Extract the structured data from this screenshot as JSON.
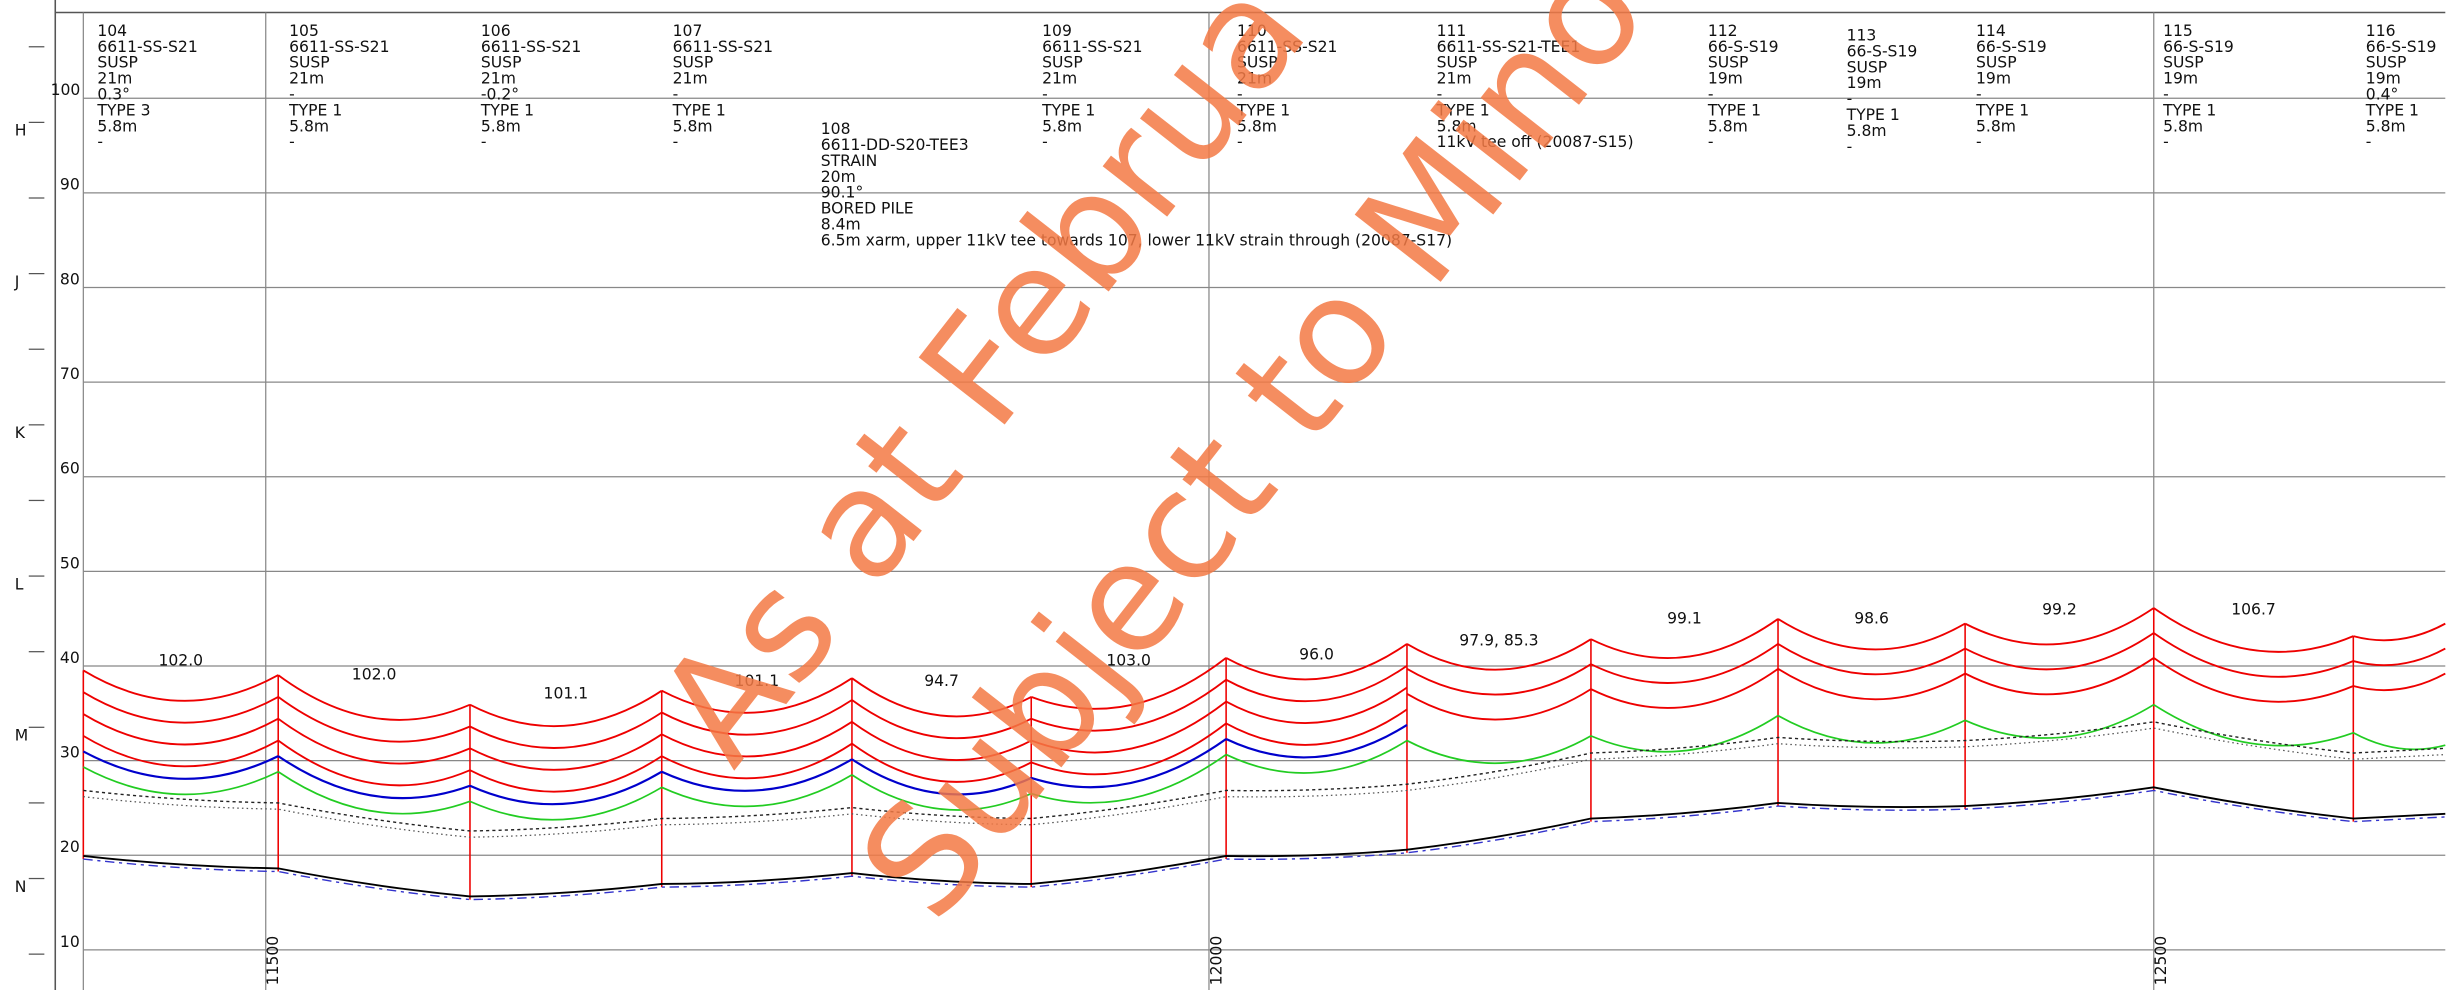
{
  "row_labels": [
    "H",
    "J",
    "K",
    "L",
    "M",
    "N"
  ],
  "elevation_labels": [
    "100",
    "90",
    "80",
    "70",
    "60",
    "50",
    "40",
    "30",
    "20",
    "10"
  ],
  "chainage_labels": [
    "11500",
    "12000",
    "12500"
  ],
  "poles": [
    {
      "lines": [
        "104",
        "6611-SS-S21",
        "SUSP",
        "21m",
        "0.3°",
        "TYPE 3",
        "5.8m",
        "-"
      ]
    },
    {
      "lines": [
        "105",
        "6611-SS-S21",
        "SUSP",
        "21m",
        "-",
        "TYPE 1",
        "5.8m",
        "-"
      ]
    },
    {
      "lines": [
        "106",
        "6611-SS-S21",
        "SUSP",
        "21m",
        "-0.2°",
        "TYPE 1",
        "5.8m",
        "-"
      ]
    },
    {
      "lines": [
        "107",
        "6611-SS-S21",
        "SUSP",
        "21m",
        "-",
        "TYPE 1",
        "5.8m",
        "-"
      ]
    },
    {
      "lines": [
        "108",
        "6611-DD-S20-TEE3",
        "STRAIN",
        "20m",
        "90.1°",
        "BORED PILE",
        "8.4m",
        "6.5m xarm, upper 11kV tee towards 107, lower 11kV strain through (20087-S17)"
      ]
    },
    {
      "lines": [
        "109",
        "6611-SS-S21",
        "SUSP",
        "21m",
        "-",
        "TYPE 1",
        "5.8m",
        "-"
      ]
    },
    {
      "lines": [
        "110",
        "6611-SS-S21",
        "SUSP",
        "21m",
        "-",
        "TYPE 1",
        "5.8m",
        "-"
      ]
    },
    {
      "lines": [
        "111",
        "6611-SS-S21-TEE1",
        "SUSP",
        "21m",
        "-",
        "TYPE 1",
        "5.8m",
        "11kV tee off (20087-S15)"
      ]
    },
    {
      "lines": [
        "112",
        "66-S-S19",
        "SUSP",
        "19m",
        "-",
        "TYPE 1",
        "5.8m",
        "-"
      ]
    },
    {
      "lines": [
        "113",
        "66-S-S19",
        "SUSP",
        "19m",
        "-",
        "TYPE 1",
        "5.8m",
        "-"
      ]
    },
    {
      "lines": [
        "114",
        "66-S-S19",
        "SUSP",
        "19m",
        "-",
        "TYPE 1",
        "5.8m",
        "-"
      ]
    },
    {
      "lines": [
        "115",
        "66-S-S19",
        "SUSP",
        "19m",
        "-",
        "TYPE 1",
        "5.8m",
        "-"
      ]
    },
    {
      "lines": [
        "116",
        "66-S-S19",
        "SUSP",
        "19m",
        "0.4°",
        "TYPE 1",
        "5.8m",
        "-"
      ]
    }
  ],
  "span_labels": [
    "102.0",
    "102.0",
    "101.1",
    "101.1",
    "94.7",
    "103.0",
    "96.0",
    "97.9, 85.3",
    "99.1",
    "98.6",
    "99.2",
    "106.7"
  ],
  "watermark": [
    "As at Februa",
    "Subject to Mino"
  ]
}
